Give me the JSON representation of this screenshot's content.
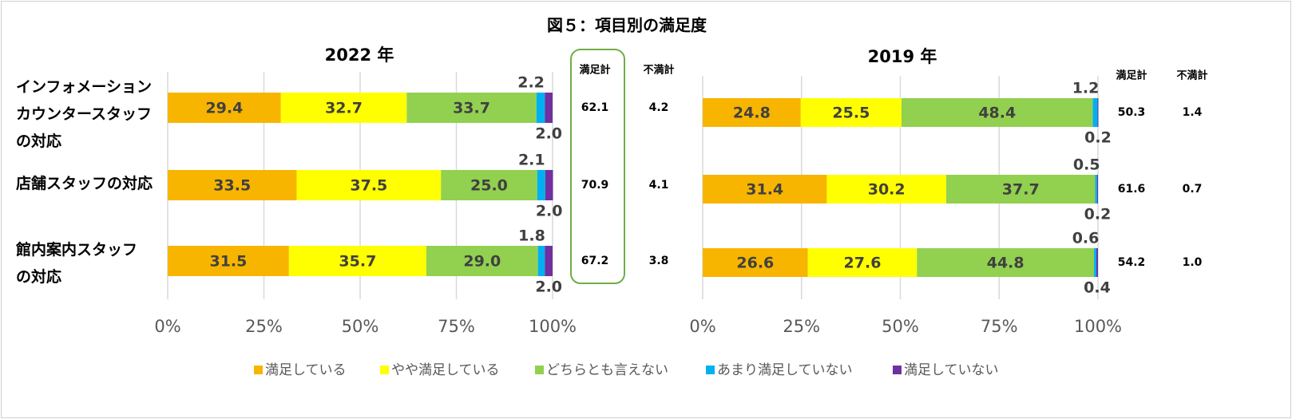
{
  "chart_data": {
    "type": "stacked_barh",
    "title": "図５：項目別の満足度",
    "categories": [
      "インフォメーション\nカウンタースタッフ\nの対応",
      "店舗スタッフの対応",
      "館内案内スタッフ\nの対応"
    ],
    "series": [
      {
        "name": "満足している",
        "color": "#f7b500"
      },
      {
        "name": "やや満足している",
        "color": "#ffff00"
      },
      {
        "name": "どちらとも言えない",
        "color": "#92d050"
      },
      {
        "name": "あまり満足していない",
        "color": "#00b0f0"
      },
      {
        "name": "満足していない",
        "color": "#7030a0"
      }
    ],
    "xlim": [
      0,
      100
    ],
    "xticks": [
      {
        "value": 0,
        "label": "0%"
      },
      {
        "value": 25,
        "label": "25%"
      },
      {
        "value": 50,
        "label": "50%"
      },
      {
        "value": 75,
        "label": "75%"
      },
      {
        "value": 100,
        "label": "100%"
      }
    ],
    "grid": true,
    "panels": [
      {
        "title": "2022 年",
        "values": [
          [
            29.4,
            33.5,
            31.5
          ],
          [
            32.7,
            37.5,
            35.7
          ],
          [
            33.7,
            25.0,
            29.0
          ],
          [
            2.2,
            2.1,
            1.8
          ],
          [
            2.0,
            2.0,
            2.0
          ]
        ],
        "value_labels": [
          [
            "29.4",
            "33.5",
            "31.5"
          ],
          [
            "32.7",
            "37.5",
            "35.7"
          ],
          [
            "33.7",
            "25.0",
            "29.0"
          ],
          [
            "2.2",
            "2.1",
            "1.8"
          ],
          [
            "2.0",
            "2.0",
            "2.0"
          ]
        ],
        "totals": {
          "headers": [
            "満足計",
            "不満計"
          ],
          "satisfied": [
            "62.1",
            "70.9",
            "67.2"
          ],
          "dissatisfied": [
            "4.2",
            "4.1",
            "3.8"
          ]
        }
      },
      {
        "title": "2019 年",
        "values": [
          [
            24.8,
            31.4,
            26.6
          ],
          [
            25.5,
            30.2,
            27.6
          ],
          [
            48.4,
            37.7,
            44.8
          ],
          [
            1.2,
            0.5,
            0.6
          ],
          [
            0.2,
            0.2,
            0.4
          ]
        ],
        "value_labels": [
          [
            "24.8",
            "31.4",
            "26.6"
          ],
          [
            "25.5",
            "30.2",
            "27.6"
          ],
          [
            "48.4",
            "37.7",
            "44.8"
          ],
          [
            "1.2",
            "0.5",
            "0.6"
          ],
          [
            "0.2",
            "0.2",
            "0.4"
          ]
        ],
        "totals": {
          "headers": [
            "満足計",
            "不満計"
          ],
          "satisfied": [
            "50.3",
            "61.6",
            "54.2"
          ],
          "dissatisfied": [
            "1.4",
            "0.7",
            "1.0"
          ]
        }
      }
    ]
  }
}
